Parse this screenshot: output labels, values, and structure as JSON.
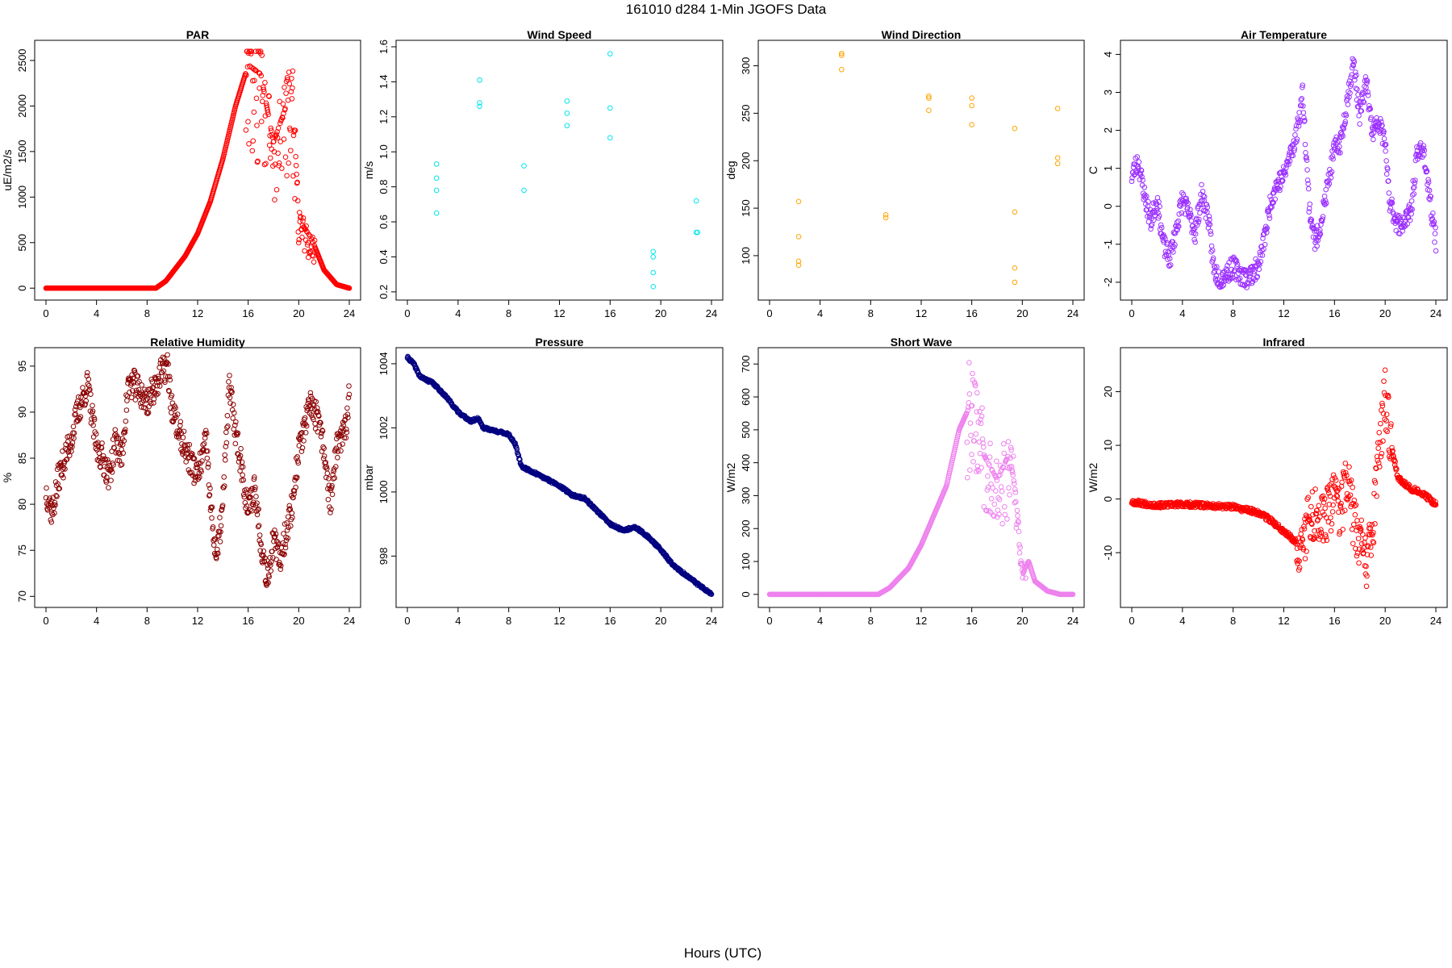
{
  "figure": {
    "title": "161010    d284    1-Min   JGOFS Data",
    "xlabel": "Hours (UTC)"
  },
  "chart_data": [
    {
      "type": "scatter",
      "title": "PAR",
      "ylabel": "uE/m2/s",
      "color": "#ff0000",
      "xlim": [
        0,
        24
      ],
      "ylim": [
        -60,
        2650
      ],
      "xticks": [
        0,
        4,
        8,
        12,
        16,
        20,
        24
      ],
      "yticks": [
        0,
        500,
        1000,
        1500,
        2000,
        2500
      ],
      "generator": "par",
      "points": []
    },
    {
      "type": "scatter",
      "title": "Wind Speed",
      "ylabel": "m/s",
      "color": "#00e5ee",
      "xlim": [
        0,
        24
      ],
      "ylim": [
        0.19,
        1.6
      ],
      "xticks": [
        0,
        4,
        8,
        12,
        16,
        20,
        24
      ],
      "yticks": [
        0.2,
        0.4,
        0.6,
        0.8,
        1.0,
        1.2,
        1.4,
        1.6
      ],
      "ytick_format": 1,
      "points": [
        [
          2.3,
          0.93
        ],
        [
          2.3,
          0.85
        ],
        [
          2.3,
          0.78
        ],
        [
          2.3,
          0.65
        ],
        [
          5.7,
          1.41
        ],
        [
          5.7,
          1.28
        ],
        [
          5.7,
          1.26
        ],
        [
          9.2,
          0.92
        ],
        [
          9.2,
          0.78
        ],
        [
          12.6,
          1.29
        ],
        [
          12.6,
          1.22
        ],
        [
          12.6,
          1.15
        ],
        [
          16.0,
          1.56
        ],
        [
          16.0,
          1.25
        ],
        [
          16.0,
          1.08
        ],
        [
          19.4,
          0.43
        ],
        [
          19.4,
          0.4
        ],
        [
          19.4,
          0.31
        ],
        [
          19.4,
          0.23
        ],
        [
          22.8,
          0.72
        ],
        [
          22.8,
          0.54
        ],
        [
          22.9,
          0.54
        ]
      ]
    },
    {
      "type": "scatter",
      "title": "Wind Direction",
      "ylabel": "deg",
      "color": "#ffa500",
      "xlim": [
        0,
        24
      ],
      "ylim": [
        60,
        320
      ],
      "xticks": [
        0,
        4,
        8,
        12,
        16,
        20,
        24
      ],
      "yticks": [
        100,
        150,
        200,
        250,
        300
      ],
      "points": [
        [
          2.3,
          157
        ],
        [
          2.3,
          120
        ],
        [
          2.3,
          94
        ],
        [
          2.3,
          90
        ],
        [
          5.7,
          313
        ],
        [
          5.7,
          311
        ],
        [
          5.7,
          296
        ],
        [
          9.2,
          143
        ],
        [
          9.2,
          140
        ],
        [
          12.6,
          268
        ],
        [
          12.6,
          266
        ],
        [
          12.6,
          253
        ],
        [
          16.0,
          266
        ],
        [
          16.0,
          258
        ],
        [
          16.0,
          238
        ],
        [
          19.4,
          234
        ],
        [
          19.4,
          146
        ],
        [
          19.4,
          87
        ],
        [
          19.4,
          72
        ],
        [
          22.8,
          255
        ],
        [
          22.8,
          203
        ],
        [
          22.8,
          197
        ]
      ]
    },
    {
      "type": "scatter",
      "title": "Air Temperature",
      "ylabel": "C",
      "color": "#9b30ff",
      "xlim": [
        0,
        24
      ],
      "ylim": [
        -2.3,
        4.2
      ],
      "xticks": [
        0,
        4,
        8,
        12,
        16,
        20,
        24
      ],
      "yticks": [
        -2,
        -1,
        0,
        1,
        2,
        3,
        4
      ],
      "generator": "air",
      "points": []
    },
    {
      "type": "scatter",
      "title": "Relative Humidity",
      "ylabel": "%",
      "color": "#8b0000",
      "xlim": [
        0,
        24
      ],
      "ylim": [
        69.5,
        96.3
      ],
      "xticks": [
        0,
        4,
        8,
        12,
        16,
        20,
        24
      ],
      "yticks": [
        70,
        75,
        80,
        85,
        90,
        95
      ],
      "generator": "rh",
      "points": []
    },
    {
      "type": "scatter",
      "title": "Pressure",
      "ylabel": "mbar",
      "color": "#000080",
      "xlim": [
        0,
        24
      ],
      "ylim": [
        996.6,
        1004.3
      ],
      "xticks": [
        0,
        4,
        8,
        12,
        16,
        20,
        24
      ],
      "yticks": [
        998,
        1000,
        1002,
        1004
      ],
      "generator": "press",
      "points": []
    },
    {
      "type": "scatter",
      "title": "Short Wave",
      "ylabel": "W/m2",
      "color": "#ee82ee",
      "xlim": [
        0,
        24
      ],
      "ylim": [
        -20,
        730
      ],
      "xticks": [
        0,
        4,
        8,
        12,
        16,
        20,
        24
      ],
      "yticks": [
        0,
        100,
        200,
        300,
        400,
        500,
        600,
        700
      ],
      "generator": "sw",
      "points": []
    },
    {
      "type": "scatter",
      "title": "Infrared",
      "ylabel": "W/m2",
      "color": "#ff0000",
      "xlim": [
        0,
        24
      ],
      "ylim": [
        -19,
        27
      ],
      "xticks": [
        0,
        4,
        8,
        12,
        16,
        20,
        24
      ],
      "yticks": [
        -10,
        0,
        10,
        20
      ],
      "generator": "ir",
      "points": []
    }
  ]
}
